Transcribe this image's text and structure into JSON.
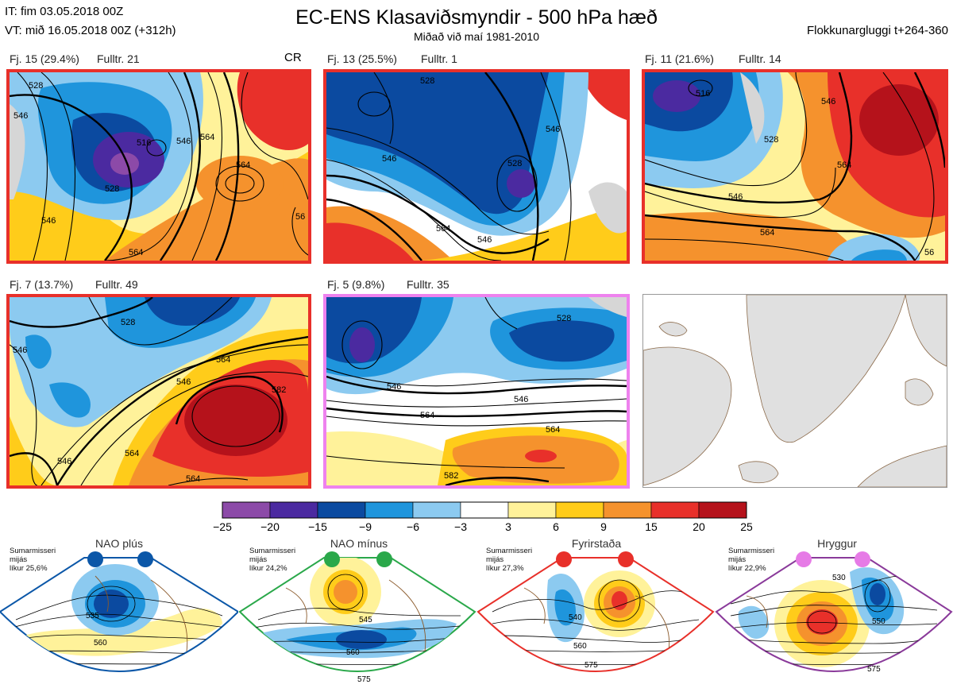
{
  "header": {
    "init_time": "IT: fim 03.05.2018 00Z",
    "valid_time": "VT: mið 16.05.2018 00Z  (+312h)",
    "title": "EC-ENS Klasaviðsmyndir - 500 hPa hæð",
    "subtitle": "Miðað við maí 1981-2010",
    "window": "Flokkunargluggi t+264-360"
  },
  "panels": [
    {
      "label": "Fj. 15 (29.4%)",
      "rep": "Fulltr. 21",
      "tag": "CR",
      "border": "#e8302a"
    },
    {
      "label": "Fj. 13 (25.5%)",
      "rep": "Fulltr. 1",
      "border": "#e8302a"
    },
    {
      "label": "Fj. 11 (21.6%)",
      "rep": "Fulltr. 14",
      "border": "#e8302a"
    },
    {
      "label": "Fj. 7 (13.7%)",
      "rep": "Fulltr. 49",
      "border": "#e8302a"
    },
    {
      "label": "Fj. 5 (9.8%)",
      "rep": "Fulltr. 35",
      "border": "#ee82ee"
    }
  ],
  "contour_labels": {
    "p1": [
      "528",
      "546",
      "516",
      "528",
      "546",
      "564",
      "564",
      "546",
      "564",
      "56"
    ],
    "p2": [
      "528",
      "546",
      "528",
      "546",
      "564",
      "546"
    ],
    "p3": [
      "516",
      "528",
      "546",
      "546",
      "564",
      "564",
      "56"
    ],
    "p4": [
      "528",
      "546",
      "564",
      "582",
      "546",
      "564",
      "564",
      "546"
    ],
    "p5": [
      "528",
      "546",
      "546",
      "564",
      "564",
      "582"
    ]
  },
  "colorbar": {
    "ticks": [
      "−25",
      "−20",
      "−15",
      "−9",
      "−6",
      "−3",
      "3",
      "6",
      "9",
      "15",
      "20",
      "25"
    ],
    "colors": [
      "#8c4aa8",
      "#4b2aa0",
      "#0b4aa0",
      "#1f95dc",
      "#8ccaf0",
      "#ffffff",
      "#fff29a",
      "#ffcc1a",
      "#f5922d",
      "#e8302a",
      "#b5121b"
    ]
  },
  "regimes": [
    {
      "name": "NAO plús",
      "info": [
        "Sumarmisseri",
        "mijás",
        "líkur 25,6%"
      ],
      "color": "#0b57a8",
      "labels": [
        "535",
        "560"
      ]
    },
    {
      "name": "NAO mínus",
      "info": [
        "Sumarmisseri",
        "mijás",
        "líkur 24,2%"
      ],
      "color": "#2aa84a",
      "labels": [
        "545",
        "560",
        "575"
      ]
    },
    {
      "name": "Fyrirstaða",
      "info": [
        "Sumarmisseri",
        "mijás",
        "líkur 27,3%"
      ],
      "color": "#e8302a",
      "labels": [
        "540",
        "560",
        "575"
      ]
    },
    {
      "name": "Hryggur",
      "info": [
        "Sumarmisseri",
        "mijás",
        "líkur 22,9%"
      ],
      "color": "#e67be6",
      "labels": [
        "530",
        "550",
        "575"
      ]
    }
  ]
}
